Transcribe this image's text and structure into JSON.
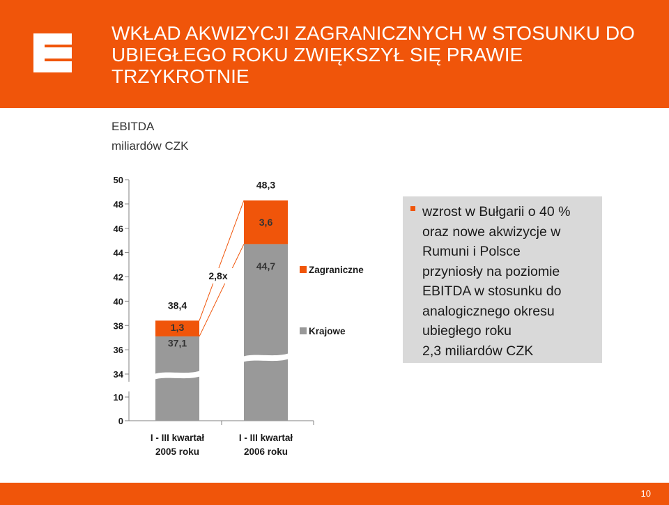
{
  "header": {
    "title_lines": [
      "WKŁAD AKWIZYCJI ZAGRANICZNYCH W STOSUNKU DO",
      "UBIEGŁEGO ROKU ZWIĘKSZYŁ SIĘ PRAWIE",
      "TRZYKROTNIE"
    ],
    "logo_icon": "cez-logo-icon",
    "background_color": "#f0550a"
  },
  "subtitle": {
    "line1": "EBITDA",
    "line2": "miliardów CZK"
  },
  "chart_data": {
    "type": "bar",
    "stacked": true,
    "broken_axis": true,
    "categories": [
      "I - III kwartał\n2005 roku",
      "I - III kwartał\n2006 roku"
    ],
    "series": [
      {
        "name": "Krajowe",
        "color": "#999999",
        "values": [
          37.1,
          44.7
        ]
      },
      {
        "name": "Zagraniczne",
        "color": "#f0550a",
        "values": [
          1.3,
          3.6
        ]
      }
    ],
    "totals": [
      "38,4",
      "48,3"
    ],
    "segment_labels": {
      "Krajowe": [
        "37,1",
        "44,7"
      ],
      "Zagraniczne": [
        "1,3",
        "3,6"
      ]
    },
    "growth_label": "2,8x",
    "yticks": [
      "0",
      "10",
      "34",
      "36",
      "38",
      "40",
      "42",
      "44",
      "46",
      "48",
      "50"
    ],
    "ylim": [
      0,
      50
    ],
    "axis_break_range": [
      10,
      34
    ],
    "grid": false,
    "legend_position": "right",
    "legend": [
      "Zagraniczne",
      "Krajowe"
    ]
  },
  "note": {
    "lines": [
      "wzrost w Bułgarii o 40 %",
      "oraz nowe akwizycje w",
      "Rumuni i Polsce",
      "przyniosły na poziomie",
      "EBITDA w stosunku do",
      "analogicznego okresu",
      "ubiegłego roku",
      "2,3 miliardów CZK"
    ],
    "background_color": "#d9d9d9",
    "bullet_color": "#f0550a"
  },
  "footer": {
    "page_number": "10"
  }
}
